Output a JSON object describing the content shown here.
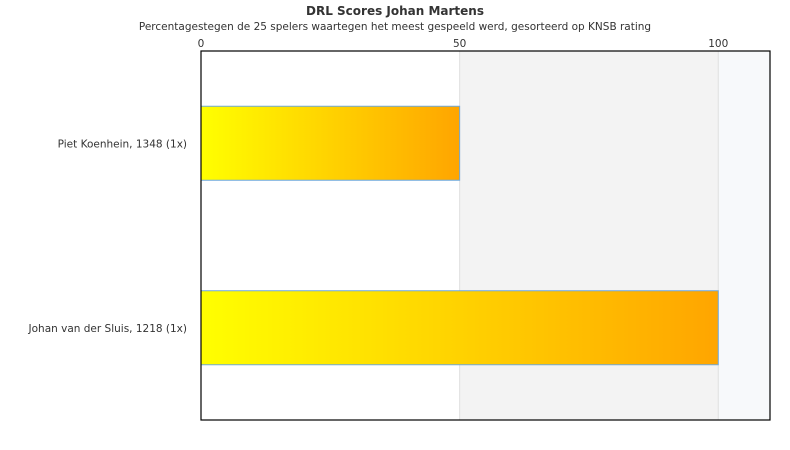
{
  "chart_data": {
    "type": "bar",
    "orientation": "horizontal",
    "title": "DRL Scores Johan Martens",
    "subtitle": "Percentagestegen de 25 spelers waartegen het meest gespeeld werd, gesorteerd op KNSB rating",
    "categories": [
      "Piet Koenhein, 1348 (1x)",
      "Johan van der Sluis, 1218 (1x)"
    ],
    "values": [
      50,
      100
    ],
    "xlim": [
      0,
      110
    ],
    "xticks": [
      "0",
      "50",
      "100"
    ],
    "xaxis_position": "top",
    "bands": [
      {
        "from": 50,
        "to": 100,
        "color": "#f3f3f3"
      },
      {
        "from": 100,
        "to": 110,
        "color": "#f7f9fb"
      }
    ],
    "bar_gradient": [
      "#ffff00",
      "#ffa500"
    ],
    "bar_border": "#6fa8dc",
    "legend": "none"
  }
}
